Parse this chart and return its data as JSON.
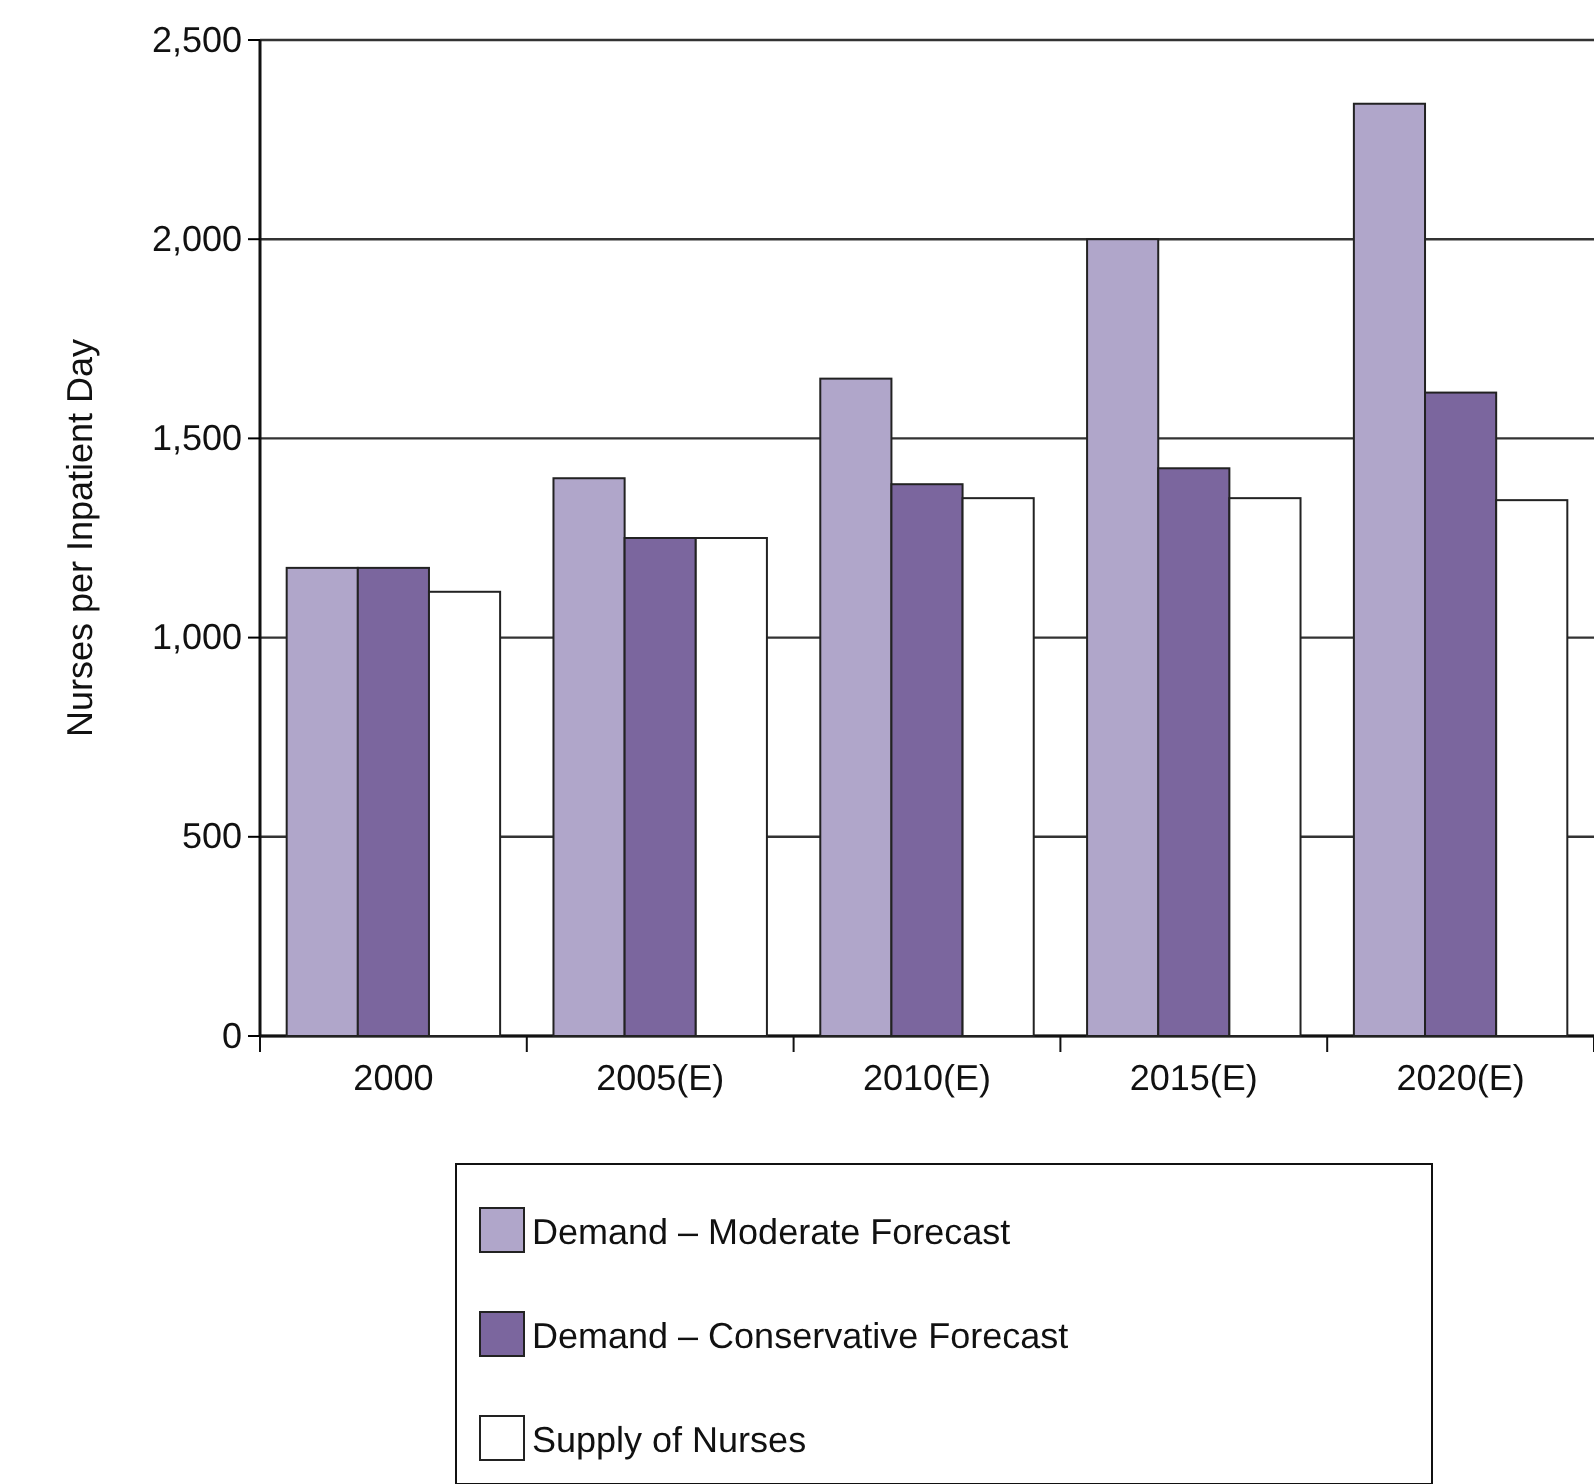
{
  "chart_data": {
    "type": "bar",
    "ylabel": "Nurses per Inpatient Day",
    "categories": [
      "2000",
      "2005(E)",
      "2010(E)",
      "2015(E)",
      "2020(E)"
    ],
    "series": [
      {
        "name": "Demand – Moderate Forecast",
        "color": "#b0a6ca",
        "values": [
          1175,
          1400,
          1650,
          2000,
          2340
        ]
      },
      {
        "name": "Demand – Conservative Forecast",
        "color": "#7b669e",
        "values": [
          1175,
          1250,
          1385,
          1425,
          1615
        ]
      },
      {
        "name": "Supply of Nurses",
        "color": "#ffffff",
        "values": [
          1115,
          1250,
          1350,
          1350,
          1345
        ]
      }
    ],
    "ylim": [
      0,
      2500
    ],
    "yticks": [
      0,
      {
        "value": 500,
        "label": "500"
      },
      {
        "value": 1000,
        "label": "1,000"
      },
      {
        "value": 1500,
        "label": "1,500"
      },
      {
        "value": 2000,
        "label": "2,000"
      },
      {
        "value": 2500,
        "label": "2,500"
      }
    ],
    "grid": "y",
    "legend": "bottom"
  }
}
